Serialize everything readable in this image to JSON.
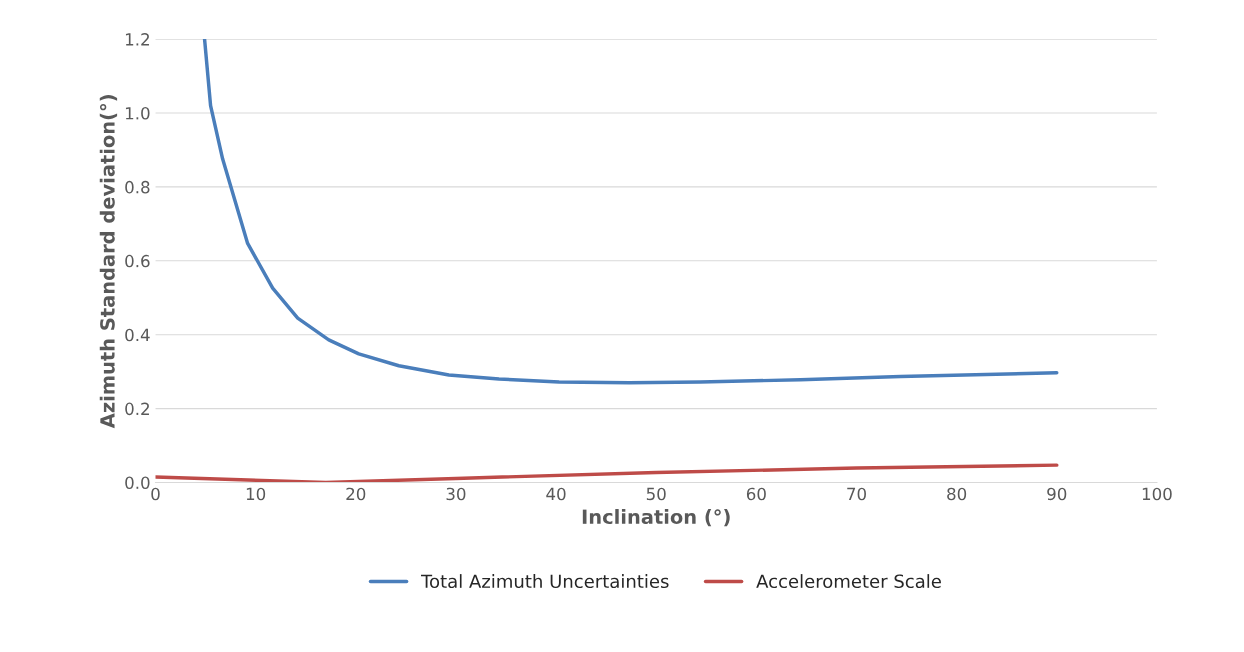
{
  "chart_data": {
    "type": "line",
    "xlabel": "Inclination (°)",
    "ylabel": "Azimuth Standard deviation(°)",
    "series": [
      {
        "name": "Total Azimuth Uncertainties",
        "color": "#4a7ebb",
        "x": [
          4.9,
          5.5,
          6.7,
          9.2,
          11.7,
          14.2,
          17.3,
          20.3,
          24.3,
          29.3,
          34.3,
          40.3,
          47.3,
          54.4,
          64.4,
          74.4,
          90
        ],
        "values": [
          1.2,
          1.02,
          0.876,
          0.647,
          0.526,
          0.445,
          0.386,
          0.348,
          0.316,
          0.291,
          0.28,
          0.272,
          0.27,
          0.272,
          0.278,
          0.287,
          0.297
        ]
      },
      {
        "name": "Accelerometer Scale",
        "color": "#be4b48",
        "x": [
          0,
          17,
          30,
          50,
          70,
          90
        ],
        "values": [
          0.015,
          0.0,
          0.011,
          0.027,
          0.039,
          0.047
        ]
      }
    ],
    "xlim": [
      0,
      100
    ],
    "xticks": [
      0,
      10,
      20,
      30,
      40,
      50,
      60,
      70,
      80,
      90,
      100
    ],
    "ylim": [
      0,
      1.2
    ],
    "yticks": [
      {
        "value": 0,
        "label": "0.0"
      },
      {
        "value": 0.2,
        "label": "0.2"
      },
      {
        "value": 0.4,
        "label": "0.4"
      },
      {
        "value": 0.6,
        "label": "0.6"
      },
      {
        "value": 0.8,
        "label": "0.8"
      },
      {
        "value": 1.0,
        "label": "1.0"
      },
      {
        "value": 1.2,
        "label": "1.2"
      }
    ],
    "grid": "y",
    "legend": "bottom",
    "marker": "none",
    "line_style": "solid"
  }
}
